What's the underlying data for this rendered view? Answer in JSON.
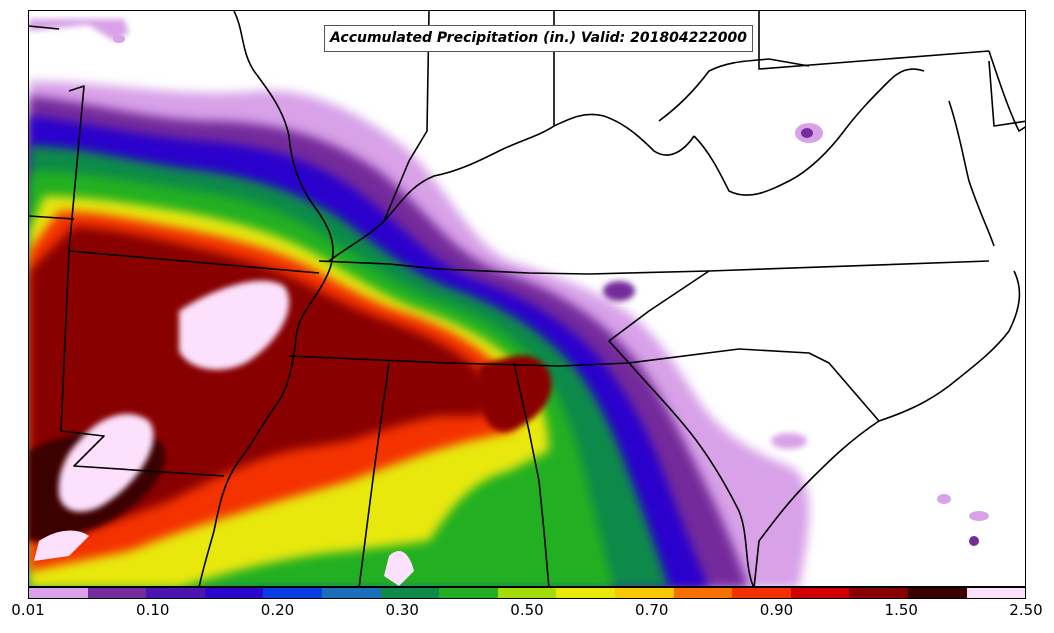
{
  "title": "Accumulated Precipitation (in.) Valid: 201804222000",
  "colorbar": {
    "colors": [
      "#d8a1e8",
      "#742b9b",
      "#4b16b0",
      "#2b06cc",
      "#0a3ee0",
      "#1b6fb8",
      "#0f8a48",
      "#22b022",
      "#a4dc0a",
      "#e8e80a",
      "#f8c800",
      "#f87000",
      "#f43000",
      "#d00000",
      "#880000",
      "#3a0000",
      "#fce0fc"
    ],
    "tick_labels": [
      "0.01",
      "0.10",
      "0.20",
      "0.30",
      "0.50",
      "0.70",
      "0.90",
      "1.50",
      "2.50"
    ]
  }
}
